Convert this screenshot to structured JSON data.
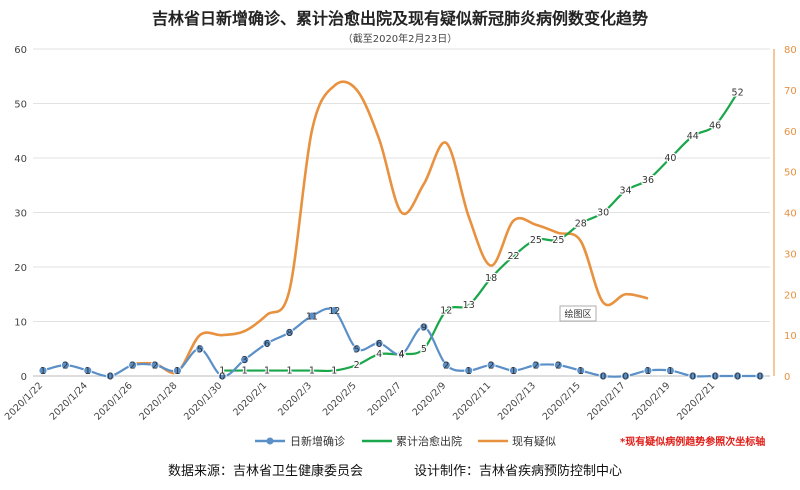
{
  "chart_data": {
    "type": "line",
    "title": "吉林省日新增确诊、累计治愈出院及现有疑似新冠肺炎病例数变化趋势",
    "subtitle": "（截至2020年2月23日）",
    "x": [
      "2020/1/22",
      "2020/1/23",
      "2020/1/24",
      "2020/1/25",
      "2020/1/26",
      "2020/1/27",
      "2020/1/28",
      "2020/1/29",
      "2020/1/30",
      "2020/1/31",
      "2020/2/1",
      "2020/2/2",
      "2020/2/3",
      "2020/2/4",
      "2020/2/5",
      "2020/2/6",
      "2020/2/7",
      "2020/2/8",
      "2020/2/9",
      "2020/2/10",
      "2020/2/11",
      "2020/2/12",
      "2020/2/13",
      "2020/2/14",
      "2020/2/15",
      "2020/2/16",
      "2020/2/17",
      "2020/2/18",
      "2020/2/19",
      "2020/2/20",
      "2020/2/21",
      "2020/2/22",
      "2020/2/23"
    ],
    "x_tick_labels": [
      "2020/1/22",
      "2020/1/24",
      "2020/1/26",
      "2020/1/28",
      "2020/1/30",
      "2020/2/1",
      "2020/2/3",
      "2020/2/5",
      "2020/2/7",
      "2020/2/9",
      "2020/2/11",
      "2020/2/13",
      "2020/2/15",
      "2020/2/17",
      "2020/2/19",
      "2020/2/21"
    ],
    "y_left": {
      "ylim": [
        0,
        60
      ],
      "ticks": [
        0,
        10,
        20,
        30,
        40,
        50,
        60
      ]
    },
    "y_right": {
      "ylim": [
        0,
        80
      ],
      "ticks": [
        0,
        10,
        20,
        30,
        40,
        50,
        60,
        70,
        80
      ]
    },
    "series": [
      {
        "name": "日新增确诊",
        "color": "#5b8fc7",
        "axis": "left",
        "labels": true,
        "values": [
          1,
          2,
          1,
          0,
          2,
          2,
          1,
          5,
          0,
          3,
          6,
          8,
          11,
          12,
          5,
          6,
          4,
          9,
          2,
          1,
          2,
          1,
          2,
          2,
          1,
          0,
          0,
          1,
          1,
          0,
          0,
          0,
          0
        ],
        "data_labels": [
          "1",
          "2",
          "1",
          "0",
          "2",
          "2",
          "1",
          "5",
          "0",
          "3",
          "6",
          "8",
          "11",
          "12",
          "5",
          "6",
          "4",
          "9",
          "2",
          "1",
          "2",
          "1",
          "2",
          "2",
          "1",
          "0",
          "0",
          "1",
          "1",
          "0",
          "0",
          "0",
          "0"
        ]
      },
      {
        "name": "累计治愈出院",
        "color": "#1aa64a",
        "axis": "left",
        "labels": true,
        "values": [
          null,
          null,
          null,
          null,
          null,
          null,
          null,
          null,
          1,
          1,
          1,
          1,
          1,
          1,
          2,
          4,
          4,
          5,
          12,
          13,
          18,
          22,
          25,
          25,
          28,
          30,
          34,
          36,
          40,
          44,
          46,
          52,
          null
        ],
        "data_labels": [
          "",
          "",
          "",
          "",
          "",
          "",
          "",
          "",
          "1",
          "1",
          "1",
          "1",
          "1",
          "1",
          "2",
          "4",
          "4",
          "5",
          "12",
          "13",
          "18",
          "22",
          "25",
          "25",
          "28",
          "30",
          "34",
          "36",
          "40",
          "44",
          "46",
          "52",
          ""
        ]
      },
      {
        "name": "现有疑似",
        "color": "#e8913f",
        "axis": "right",
        "labels": false,
        "values": [
          null,
          null,
          null,
          null,
          3,
          3,
          1,
          10,
          10,
          11,
          15,
          21,
          60,
          71,
          70,
          58,
          40,
          47,
          57,
          39,
          27,
          38,
          37,
          35,
          33,
          18,
          20,
          19,
          null,
          null,
          null,
          null,
          null
        ]
      }
    ],
    "legend_position": "bottom",
    "grid": true,
    "annotation_box": "绘图区",
    "note": "*现有疑似病例趋势参照次坐标轴",
    "source_text": "数据来源：吉林省卫生健康委员会",
    "designer_text": "设计制作：吉林省疾病预防控制中心"
  }
}
